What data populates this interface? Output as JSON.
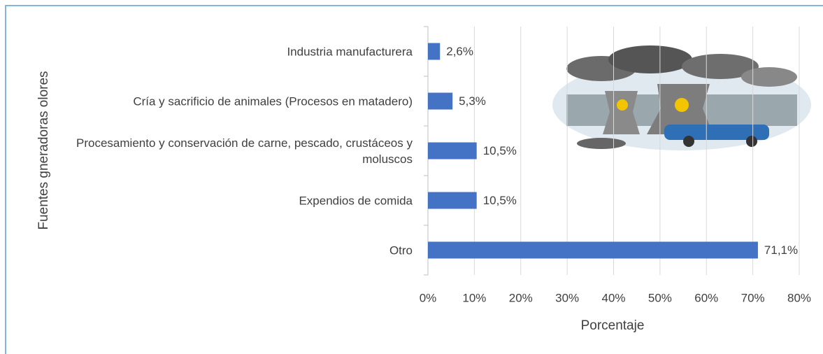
{
  "chart_data": {
    "type": "barh",
    "xlabel": "Porcentaje",
    "ylabel": "Fuentes gneradoras olores",
    "categories": [
      "Industria manufacturera",
      "Cría y sacrificio de animales (Procesos en matadero)",
      "Procesamiento y conservación de carne, pescado, crustáceos y moluscos",
      "Expendios de comida",
      "Otro"
    ],
    "values": [
      2.6,
      5.3,
      10.5,
      10.5,
      71.1
    ],
    "value_labels": [
      "2,6%",
      "5,3%",
      "10,5%",
      "10,5%",
      "71,1%"
    ],
    "color": "#4472c4",
    "xlim": [
      0,
      80
    ],
    "xticks": [
      {
        "value": 0,
        "label": "0%"
      },
      {
        "value": 10,
        "label": "10%"
      },
      {
        "value": 20,
        "label": "20%"
      },
      {
        "value": 30,
        "label": "30%"
      },
      {
        "value": 40,
        "label": "40%"
      },
      {
        "value": 50,
        "label": "50%"
      },
      {
        "value": 60,
        "label": "60%"
      },
      {
        "value": 70,
        "label": "70%"
      },
      {
        "value": 80,
        "label": "80%"
      }
    ],
    "grid": true
  }
}
